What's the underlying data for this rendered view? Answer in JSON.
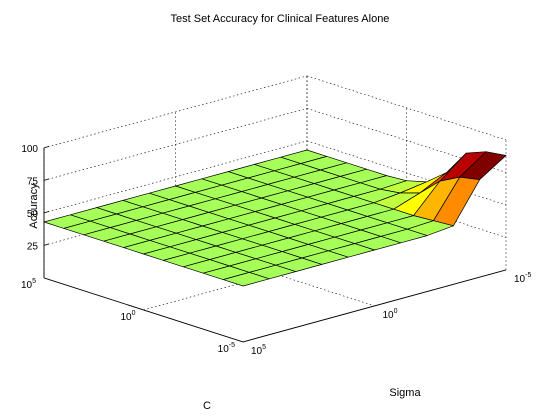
{
  "chart_data": {
    "type": "surface",
    "title": "Test Set Accuracy for Clinical Features Alone",
    "xlabel": "C",
    "ylabel": "Sigma",
    "zlabel": "Accuracy",
    "z_ticks": [
      "25",
      "50",
      "75",
      "100"
    ],
    "c_ticks": [
      {
        "base": "10",
        "exp": "5"
      },
      {
        "base": "10",
        "exp": "0"
      },
      {
        "base": "10",
        "exp": "-5"
      }
    ],
    "sigma_ticks": [
      {
        "base": "10",
        "exp": "5"
      },
      {
        "base": "10",
        "exp": "0"
      },
      {
        "base": "10",
        "exp": "-5"
      }
    ],
    "zlim": [
      0,
      100
    ],
    "grid": true,
    "colormap": "jet",
    "note_axes": "C and Sigma are log10-scaled from 10^-5 to 10^5; surface heights are estimated accuracy values",
    "z": [
      [
        43,
        43,
        43,
        43,
        43,
        43,
        43,
        43,
        43,
        43,
        43
      ],
      [
        43,
        43,
        43,
        43,
        43,
        43,
        43,
        43,
        43,
        43,
        43
      ],
      [
        43,
        43,
        43,
        43,
        43,
        43,
        43,
        43,
        43,
        43,
        43
      ],
      [
        43,
        43,
        43,
        43,
        43,
        43,
        43,
        43,
        43,
        43,
        43
      ],
      [
        43,
        43,
        43,
        43,
        43,
        43,
        43,
        43,
        43,
        43,
        43
      ],
      [
        43,
        43,
        43,
        43,
        43,
        43,
        43,
        43,
        43,
        43,
        43
      ],
      [
        43,
        43,
        43,
        43,
        43,
        43,
        43,
        43,
        43,
        43,
        43
      ],
      [
        43,
        43,
        43,
        43,
        43,
        43,
        43,
        43,
        43,
        43,
        43
      ],
      [
        43,
        43,
        43,
        43,
        43,
        43,
        43,
        43,
        43,
        44,
        45
      ],
      [
        43,
        43,
        43,
        43,
        43,
        43,
        45,
        50,
        64,
        72,
        75
      ],
      [
        43,
        43,
        43,
        43,
        43,
        44,
        48,
        60,
        80,
        86,
        88
      ]
    ]
  }
}
